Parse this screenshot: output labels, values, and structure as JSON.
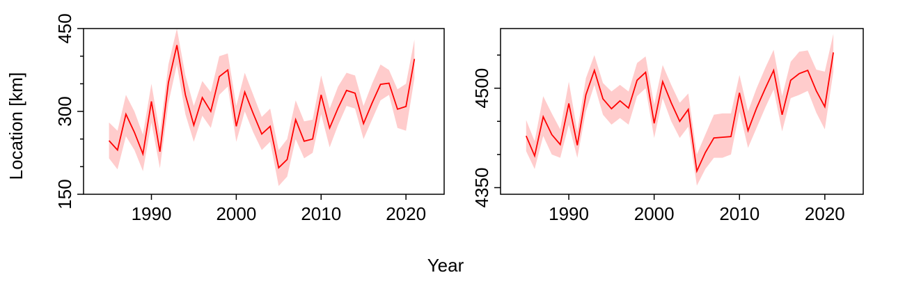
{
  "figure": {
    "ylabel": "Location [km]",
    "xlabel": "Year",
    "line_color": "#ff0000",
    "band_color": "#ffcccc"
  },
  "chart_data": [
    {
      "type": "area",
      "panel": "left",
      "xlim": [
        1982,
        2024.5
      ],
      "ylim": [
        150,
        450
      ],
      "x_ticks": [
        1990,
        2000,
        2010,
        2020
      ],
      "y_ticks": [
        150,
        300,
        450
      ],
      "y_minor_ticks": [
        200,
        250,
        350,
        400
      ],
      "series": [
        {
          "x": [
            1985,
            1986,
            1987,
            1988,
            1989,
            1990,
            1991,
            1992,
            1993,
            1994,
            1995,
            1996,
            1997,
            1998,
            1999,
            2000,
            2001,
            2002,
            2003,
            2004,
            2005,
            2006,
            2007,
            2008,
            2009,
            2010,
            2011,
            2012,
            2013,
            2014,
            2015,
            2016,
            2017,
            2018,
            2019,
            2020,
            2021
          ],
          "y": [
            247,
            230,
            295,
            262,
            223,
            318,
            227,
            352,
            420,
            330,
            275,
            325,
            300,
            363,
            375,
            273,
            335,
            296,
            259,
            273,
            198,
            213,
            285,
            246,
            250,
            330,
            270,
            306,
            338,
            333,
            278,
            315,
            349,
            351,
            304,
            309,
            395
          ],
          "lower": [
            215,
            195,
            255,
            230,
            192,
            280,
            197,
            315,
            385,
            295,
            245,
            292,
            270,
            330,
            345,
            245,
            300,
            262,
            230,
            245,
            165,
            182,
            250,
            215,
            225,
            295,
            235,
            275,
            310,
            305,
            250,
            285,
            320,
            330,
            270,
            265,
            360
          ],
          "upper": [
            280,
            265,
            330,
            300,
            258,
            350,
            260,
            385,
            450,
            365,
            310,
            355,
            335,
            400,
            405,
            310,
            370,
            330,
            290,
            305,
            230,
            250,
            320,
            282,
            285,
            365,
            305,
            345,
            370,
            365,
            310,
            350,
            385,
            375,
            340,
            350,
            430
          ]
        }
      ]
    },
    {
      "type": "area",
      "panel": "right",
      "xlim": [
        1982,
        2024.5
      ],
      "ylim": [
        4340,
        4590
      ],
      "x_ticks": [
        1990,
        2000,
        2010,
        2020
      ],
      "y_ticks": [
        4350,
        4500
      ],
      "y_minor_ticks": [
        4400,
        4450,
        4550
      ],
      "series": [
        {
          "x": [
            1985,
            1986,
            1987,
            1988,
            1989,
            1990,
            1991,
            1992,
            1993,
            1994,
            1995,
            1996,
            1997,
            1998,
            1999,
            2000,
            2001,
            2002,
            2003,
            2004,
            2005,
            2006,
            2007,
            2008,
            2009,
            2010,
            2011,
            2012,
            2013,
            2014,
            2015,
            2016,
            2017,
            2018,
            2019,
            2020,
            2021
          ],
          "y": [
            4428,
            4398,
            4457,
            4430,
            4415,
            4477,
            4414,
            4490,
            4527,
            4484,
            4469,
            4481,
            4470,
            4512,
            4524,
            4447,
            4510,
            4478,
            4450,
            4468,
            4375,
            4403,
            4425,
            4426,
            4427,
            4493,
            4436,
            4470,
            4499,
            4527,
            4460,
            4512,
            4522,
            4527,
            4496,
            4472,
            4554
          ],
          "lower": [
            4405,
            4378,
            4428,
            4400,
            4395,
            4445,
            4395,
            4465,
            4505,
            4460,
            4445,
            4455,
            4445,
            4488,
            4500,
            4425,
            4485,
            4450,
            4425,
            4442,
            4353,
            4378,
            4395,
            4395,
            4400,
            4465,
            4410,
            4440,
            4470,
            4498,
            4435,
            4485,
            4490,
            4496,
            4463,
            4438,
            4525
          ],
          "upper": [
            4452,
            4420,
            4488,
            4462,
            4438,
            4510,
            4435,
            4515,
            4550,
            4508,
            4495,
            4505,
            4495,
            4538,
            4548,
            4475,
            4535,
            4505,
            4478,
            4492,
            4400,
            4430,
            4460,
            4462,
            4462,
            4520,
            4465,
            4500,
            4530,
            4558,
            4488,
            4540,
            4555,
            4557,
            4528,
            4525,
            4582
          ]
        }
      ]
    }
  ]
}
